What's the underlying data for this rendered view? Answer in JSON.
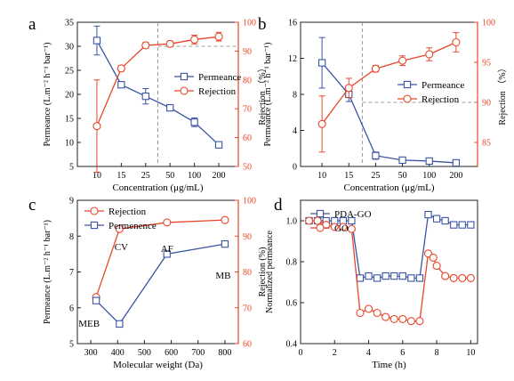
{
  "colors": {
    "blue": "#3a54a4",
    "red": "#e8462a",
    "black": "#222222",
    "grid": "#808080"
  },
  "chart_data": [
    {
      "panel": "a",
      "type": "line",
      "categories": [
        "10",
        "15",
        "25",
        "50",
        "100",
        "200"
      ],
      "xlabel": "Concentration (μg/mL)",
      "ylabel": "Permeance (L.m⁻² h⁻¹ bar⁻¹)",
      "y2label": "Rejection （%）",
      "ylim": [
        5,
        35
      ],
      "y2lim": [
        50,
        100
      ],
      "yticks": [
        "5",
        "10",
        "15",
        "20",
        "25",
        "30",
        "35"
      ],
      "y2ticks": [
        "50",
        "60",
        "70",
        "80",
        "90",
        "100"
      ],
      "legend_position": "right",
      "series": [
        {
          "name": "Permeance",
          "axis": "left",
          "marker": "square",
          "color": "#3a54a4",
          "values": [
            31.2,
            22.0,
            19.6,
            17.2,
            14.2,
            9.5
          ],
          "errors": [
            3.0,
            0.6,
            1.6,
            0.4,
            0.9,
            0.6
          ]
        },
        {
          "name": "Rejection",
          "axis": "right",
          "marker": "circle",
          "color": "#e8462a",
          "values": [
            64,
            84,
            92,
            92.5,
            94,
            95
          ],
          "errors": [
            16,
            1,
            1,
            1,
            1.5,
            1.5
          ]
        }
      ],
      "guides": {
        "hline": 30,
        "vline": 2.5
      }
    },
    {
      "panel": "b",
      "type": "line",
      "categories": [
        "10",
        "15",
        "25",
        "50",
        "100",
        "200"
      ],
      "xlabel": "Concentration (μg/mL)",
      "ylabel": "Permeance (L.m⁻² h⁻¹ bar⁻¹)",
      "y2label": "Rejection （%）",
      "ylim": [
        0,
        16
      ],
      "y2lim": [
        82,
        100
      ],
      "yticks": [
        "0",
        "4",
        "8",
        "12",
        "16"
      ],
      "y2ticks": [
        "85",
        "90",
        "95",
        "100"
      ],
      "legend_position": "right",
      "series": [
        {
          "name": "Permeance",
          "axis": "left",
          "marker": "square",
          "color": "#3a54a4",
          "values": [
            11.5,
            8.0,
            1.2,
            0.7,
            0.6,
            0.4
          ],
          "errors": [
            2.8,
            0.8,
            0.4,
            0.3,
            0.3,
            0.3
          ]
        },
        {
          "name": "Rejection",
          "axis": "right",
          "marker": "circle",
          "color": "#e8462a",
          "values": [
            87.3,
            91.8,
            94.2,
            95.2,
            96.0,
            97.5
          ],
          "errors": [
            3.5,
            1.2,
            0.4,
            0.6,
            0.8,
            1.2
          ]
        }
      ],
      "guides": {
        "hline": 90,
        "vline": 1.5
      }
    },
    {
      "panel": "c",
      "type": "line",
      "xlabel": "Molecular weight (Da)",
      "ylabel": "Permeance (L.m⁻² h⁻¹ bar⁻¹)",
      "y2label": "Rejection (%)",
      "xlim": [
        250,
        850
      ],
      "xticks": [
        "300",
        "400",
        "500",
        "600",
        "700",
        "800"
      ],
      "ylim": [
        5,
        9
      ],
      "y2lim": [
        60,
        100
      ],
      "yticks": [
        "5",
        "6",
        "7",
        "8",
        "9"
      ],
      "y2ticks": [
        "60",
        "70",
        "80",
        "90",
        "100"
      ],
      "legend_position": "top-left",
      "series": [
        {
          "name": "Rejection",
          "axis": "right",
          "marker": "circle",
          "color": "#e8462a",
          "x": [
            320,
            407,
            584,
            800
          ],
          "values": [
            73,
            92,
            93.8,
            94.5
          ]
        },
        {
          "name": "Permenence",
          "axis": "left",
          "marker": "square",
          "color": "#3a54a4",
          "x": [
            320,
            407,
            584,
            800
          ],
          "values": [
            6.2,
            5.55,
            7.5,
            7.78
          ]
        }
      ],
      "annotations": [
        {
          "text": "MEB",
          "x": 320
        },
        {
          "text": "CV",
          "x": 407
        },
        {
          "text": "AF",
          "x": 584
        },
        {
          "text": "MB",
          "x": 800
        }
      ]
    },
    {
      "panel": "d",
      "type": "line",
      "xlabel": "Time (h)",
      "ylabel": "Normalized permeance",
      "xlim": [
        0,
        10.4
      ],
      "xticks": [
        "0",
        "2",
        "4",
        "6",
        "8",
        "10"
      ],
      "ylim": [
        0.4,
        1.1
      ],
      "yticks": [
        "0.4",
        "0.6",
        "0.8",
        "1.0"
      ],
      "legend_position": "top-left",
      "series": [
        {
          "name": "PDA-GO",
          "marker": "square",
          "color": "#3a54a4",
          "x": [
            0.5,
            1.0,
            1.5,
            2.0,
            2.5,
            3.0,
            3.5,
            4.0,
            4.5,
            5.0,
            5.5,
            6.0,
            6.5,
            7.0,
            7.5,
            8.0,
            8.5,
            9.0,
            9.5,
            10.0
          ],
          "values": [
            1.0,
            1.0,
            1.0,
            1.0,
            1.0,
            1.0,
            0.72,
            0.73,
            0.72,
            0.73,
            0.73,
            0.73,
            0.72,
            0.72,
            1.03,
            1.01,
            1.0,
            0.98,
            0.98,
            0.98
          ]
        },
        {
          "name": "GO",
          "marker": "circle",
          "color": "#e8462a",
          "x": [
            0.5,
            1.0,
            1.5,
            2.0,
            2.5,
            3.0,
            3.5,
            4.0,
            4.5,
            5.0,
            5.5,
            6.0,
            6.5,
            7.0,
            7.5,
            7.8,
            8.0,
            8.5,
            9.0,
            9.5,
            10.0
          ],
          "values": [
            1.0,
            1.0,
            0.98,
            0.97,
            0.97,
            0.96,
            0.55,
            0.57,
            0.55,
            0.53,
            0.52,
            0.52,
            0.51,
            0.51,
            0.84,
            0.82,
            0.78,
            0.73,
            0.72,
            0.72,
            0.72
          ]
        }
      ]
    }
  ]
}
